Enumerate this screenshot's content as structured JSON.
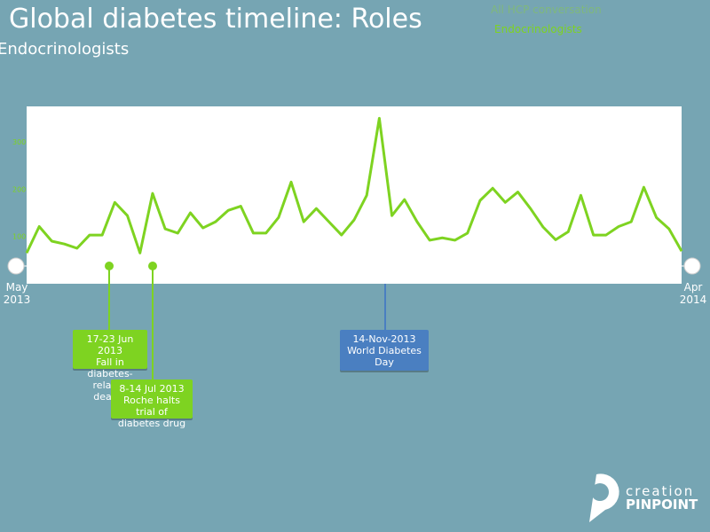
{
  "chart_data": {
    "type": "line",
    "title": "Global diabetes timeline: Roles",
    "subtitle": "Endocrinologists",
    "legend_inactive": "All HCP conversation",
    "categories": [
      "May 2013",
      null,
      null,
      null,
      null,
      null,
      null,
      null,
      null,
      null,
      null,
      null,
      null,
      null,
      null,
      null,
      null,
      null,
      null,
      null,
      null,
      null,
      null,
      null,
      null,
      null,
      null,
      null,
      null,
      null,
      null,
      null,
      null,
      null,
      null,
      null,
      null,
      null,
      null,
      null,
      null,
      null,
      null,
      null,
      null,
      null,
      null,
      null,
      null,
      null,
      null,
      null,
      "Apr 2014"
    ],
    "series": [
      {
        "name": "Endocrinologists",
        "color": "#7ed321",
        "values": [
          65,
          121,
          90,
          84,
          75,
          103,
          103,
          172,
          144,
          65,
          191,
          116,
          107,
          150,
          118,
          131,
          155,
          164,
          107,
          107,
          140,
          215,
          131,
          159,
          131,
          103,
          135,
          187,
          350,
          144,
          178,
          131,
          92,
          97,
          92,
          107,
          176,
          202,
          172,
          194,
          159,
          120,
          93,
          110,
          187,
          103,
          103,
          121,
          131,
          204,
          140,
          116,
          69
        ]
      }
    ],
    "ylim": [
      0,
      375
    ],
    "yticks": [
      100,
      200,
      300
    ],
    "events": [
      {
        "date": "17-23 Jun 2013",
        "label": "Fall in diabetes-related deaths",
        "color": "#7ed321"
      },
      {
        "date": "8-14 Jul 2013",
        "label": "Roche halts trial of diabetes drug",
        "color": "#7ed321"
      },
      {
        "date": "14-Nov-2013",
        "label": "World Diabetes Day",
        "color": "#4a7fc1"
      }
    ]
  },
  "logo": {
    "top": "creation",
    "bottom": "PINPOINT"
  }
}
